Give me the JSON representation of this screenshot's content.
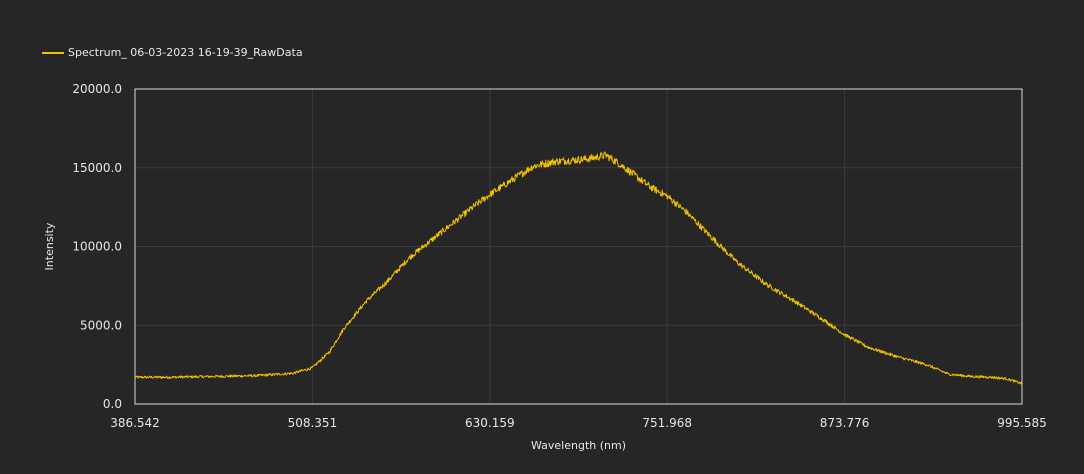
{
  "colors": {
    "background": "#262626",
    "plot_border": "#d8d8d8",
    "grid": "#3a3a3a",
    "series": "#f2c200",
    "text": "#e6e6e6"
  },
  "chart_data": {
    "type": "line",
    "legend_position": "top-left",
    "grid": true,
    "xlabel": "Wavelength (nm)",
    "ylabel": "Intensity",
    "xlim": [
      386.542,
      995.585
    ],
    "ylim": [
      0,
      20000
    ],
    "x_ticks": [
      "386.542",
      "508.351",
      "630.159",
      "751.968",
      "873.776",
      "995.585"
    ],
    "y_ticks": [
      "0.0",
      "5000.0",
      "10000.0",
      "15000.0",
      "20000.0"
    ],
    "series": [
      {
        "name": "Spectrum_ 06-03-2023 16-19-39_RawData",
        "x": [
          386.542,
          410,
          440,
          470,
          495,
          508.351,
          520,
          530,
          545,
          560,
          575,
          590,
          605,
          620,
          630.159,
          645,
          660,
          675,
          690,
          700,
          710,
          720,
          730,
          740,
          751.968,
          765,
          780,
          800,
          820,
          840,
          860,
          873.776,
          890,
          910,
          930,
          945,
          960,
          975,
          985,
          995.585
        ],
        "y": [
          1700,
          1700,
          1750,
          1800,
          1950,
          2300,
          3300,
          4800,
          6500,
          7800,
          9300,
          10400,
          11500,
          12600,
          13300,
          14200,
          15100,
          15400,
          15500,
          15600,
          15800,
          15200,
          14500,
          13800,
          13200,
          12200,
          10800,
          9000,
          7600,
          6500,
          5300,
          4400,
          3600,
          3000,
          2500,
          1900,
          1750,
          1700,
          1600,
          1300
        ]
      }
    ]
  }
}
